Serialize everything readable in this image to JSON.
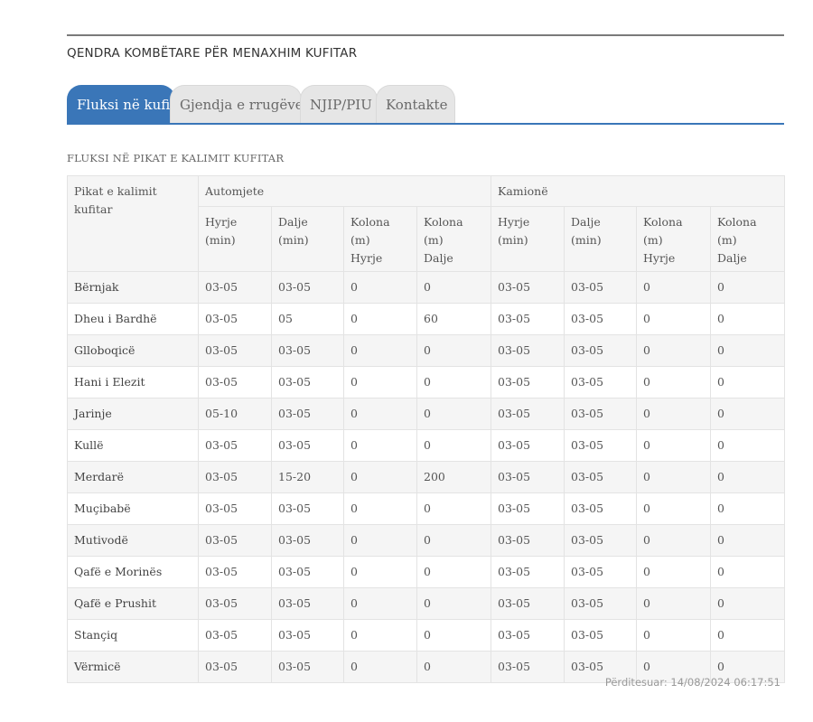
{
  "site": {
    "title": "QENDRA KOMBËTARE PËR MENAXHIM KUFITAR"
  },
  "tabs": [
    {
      "label": "Fluksi në kufi",
      "active": true
    },
    {
      "label": "Gjendja e rrugëve",
      "active": false
    },
    {
      "label": "NJIP/PIU",
      "active": false
    },
    {
      "label": "Kontakte",
      "active": false
    }
  ],
  "section": {
    "title": "FLUKSI NË PIKAT E KALIMIT KUFITAR"
  },
  "table": {
    "corner_header": "Pikat e kalimit kufitar",
    "groups": [
      "Automjete",
      "Kamionë"
    ],
    "sub_headers": [
      [
        "Hyrje",
        "(min)"
      ],
      [
        "Dalje",
        "(min)"
      ],
      [
        "Kolona",
        "(m)",
        "Hyrje"
      ],
      [
        "Kolona",
        "(m)",
        "Dalje"
      ],
      [
        "Hyrje",
        "(min)"
      ],
      [
        "Dalje",
        "(min)"
      ],
      [
        "Kolona",
        "(m)",
        "Hyrje"
      ],
      [
        "Kolona",
        "(m)",
        "Dalje"
      ]
    ],
    "rows": [
      {
        "name": "Bërnjak",
        "cells": [
          "03-05",
          "03-05",
          "0",
          "0",
          "03-05",
          "03-05",
          "0",
          "0"
        ]
      },
      {
        "name": "Dheu i Bardhë",
        "cells": [
          "03-05",
          "05",
          "0",
          "60",
          "03-05",
          "03-05",
          "0",
          "0"
        ]
      },
      {
        "name": "Glloboqicë",
        "cells": [
          "03-05",
          "03-05",
          "0",
          "0",
          "03-05",
          "03-05",
          "0",
          "0"
        ]
      },
      {
        "name": "Hani i Elezit",
        "cells": [
          "03-05",
          "03-05",
          "0",
          "0",
          "03-05",
          "03-05",
          "0",
          "0"
        ]
      },
      {
        "name": "Jarinje",
        "cells": [
          "05-10",
          "03-05",
          "0",
          "0",
          "03-05",
          "03-05",
          "0",
          "0"
        ]
      },
      {
        "name": "Kullë",
        "cells": [
          "03-05",
          "03-05",
          "0",
          "0",
          "03-05",
          "03-05",
          "0",
          "0"
        ]
      },
      {
        "name": "Merdarë",
        "cells": [
          "03-05",
          "15-20",
          "0",
          "200",
          "03-05",
          "03-05",
          "0",
          "0"
        ]
      },
      {
        "name": "Muçibabë",
        "cells": [
          "03-05",
          "03-05",
          "0",
          "0",
          "03-05",
          "03-05",
          "0",
          "0"
        ]
      },
      {
        "name": "Mutivodë",
        "cells": [
          "03-05",
          "03-05",
          "0",
          "0",
          "03-05",
          "03-05",
          "0",
          "0"
        ]
      },
      {
        "name": "Qafë e Morinës",
        "cells": [
          "03-05",
          "03-05",
          "0",
          "0",
          "03-05",
          "03-05",
          "0",
          "0"
        ]
      },
      {
        "name": "Qafë e Prushit",
        "cells": [
          "03-05",
          "03-05",
          "0",
          "0",
          "03-05",
          "03-05",
          "0",
          "0"
        ]
      },
      {
        "name": "Stançiq",
        "cells": [
          "03-05",
          "03-05",
          "0",
          "0",
          "03-05",
          "03-05",
          "0",
          "0"
        ]
      },
      {
        "name": "Vërmicë",
        "cells": [
          "03-05",
          "03-05",
          "0",
          "0",
          "03-05",
          "03-05",
          "0",
          "0"
        ]
      }
    ]
  },
  "footer": {
    "updated": "Përditesuar: 14/08/2024 06:17:51"
  },
  "colors": {
    "accent": "#3a76b8",
    "tab_inactive": "#e6e6e6",
    "row_stripe": "#f5f5f5"
  }
}
